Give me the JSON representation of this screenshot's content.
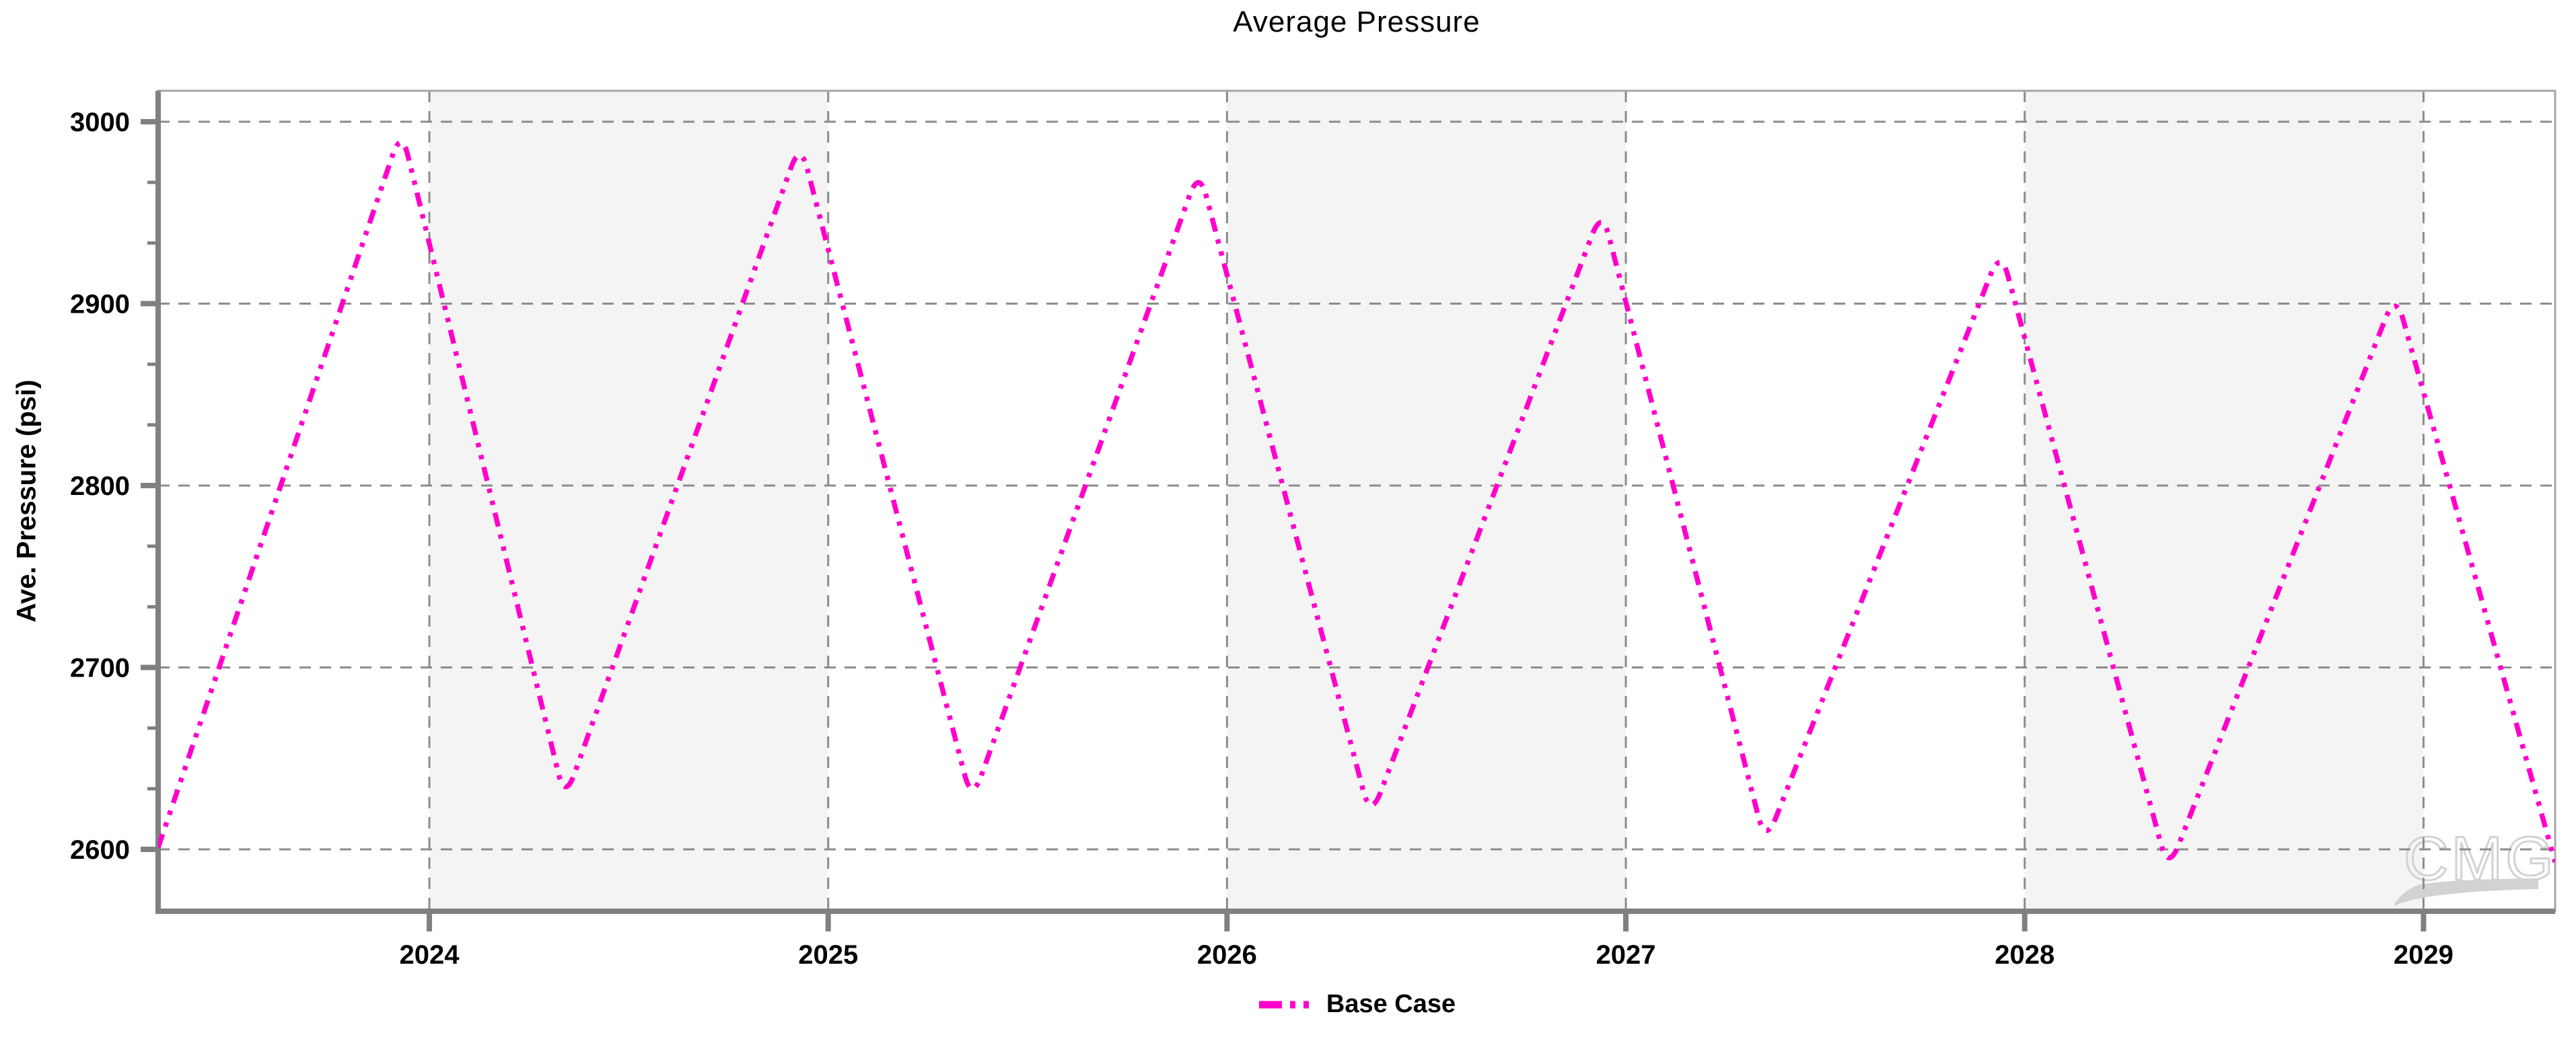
{
  "watermark": {
    "text": "CMG"
  },
  "colors": {
    "line": "#FF00CC",
    "grid": "#8c8c8c",
    "axis": "#808080",
    "border": "#a6a6a6",
    "band": "#f4f4f4",
    "watermark": "#d2d2d2",
    "text": "#000000"
  },
  "legend": {
    "items": [
      {
        "label": "Base Case",
        "style": "dash-dot-dot"
      }
    ]
  },
  "chart_data": {
    "type": "line",
    "title": "Average Pressure",
    "xlabel": "",
    "ylabel": "Ave. Pressure (psi)",
    "xlim": [
      2023.32,
      2029.33
    ],
    "ylim": [
      2566,
      3017
    ],
    "x_ticks": [
      2024,
      2025,
      2026,
      2027,
      2028,
      2029
    ],
    "y_ticks": [
      2600,
      2700,
      2800,
      2900,
      3000
    ],
    "y_minor_divisions": 3,
    "grid": "dashed",
    "legend_position": "bottom-center",
    "shaded_bands": [
      [
        2024,
        2025
      ],
      [
        2026,
        2027
      ],
      [
        2028,
        2029
      ]
    ],
    "series": [
      {
        "name": "Base Case",
        "color": "#FF00CC",
        "line_style": "dash-dot-dot",
        "points": [
          [
            2023.32,
            2601
          ],
          [
            2023.93,
            2996
          ],
          [
            2024.34,
            2627
          ],
          [
            2024.93,
            2989
          ],
          [
            2025.36,
            2626
          ],
          [
            2025.93,
            2974
          ],
          [
            2026.36,
            2617
          ],
          [
            2026.94,
            2952
          ],
          [
            2027.35,
            2603
          ],
          [
            2027.94,
            2930
          ],
          [
            2028.36,
            2588
          ],
          [
            2028.93,
            2906
          ],
          [
            2029.33,
            2593
          ]
        ]
      }
    ]
  }
}
